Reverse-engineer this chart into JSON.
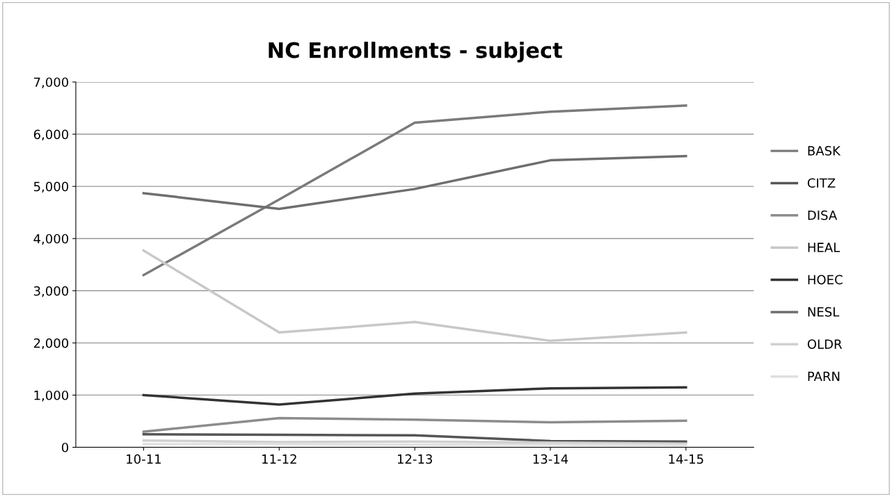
{
  "chart_data": {
    "type": "line",
    "title": "NC Enrollments - subject",
    "categories": [
      "10-11",
      "11-12",
      "12-13",
      "13-14",
      "14-15"
    ],
    "series": [
      {
        "name": "BASK",
        "color": "#7a7a7a",
        "values": [
          3300,
          4750,
          6220,
          6430,
          6550
        ]
      },
      {
        "name": "CITZ",
        "color": "#555555",
        "values": [
          250,
          240,
          230,
          120,
          110
        ]
      },
      {
        "name": "DISA",
        "color": "#8c8c8c",
        "values": [
          300,
          560,
          530,
          480,
          510
        ]
      },
      {
        "name": "HEAL",
        "color": "#c8c8c8",
        "values": [
          3770,
          2200,
          2400,
          2040,
          2200
        ]
      },
      {
        "name": "HOEC",
        "color": "#333333",
        "values": [
          1000,
          820,
          1030,
          1130,
          1150
        ]
      },
      {
        "name": "NESL",
        "color": "#6e6e6e",
        "values": [
          4870,
          4570,
          4950,
          5500,
          5580
        ]
      },
      {
        "name": "OLDR",
        "color": "#d0d0d0",
        "values": [
          130,
          100,
          110,
          90,
          70
        ]
      },
      {
        "name": "PARN",
        "color": "#e0e0e0",
        "values": [
          60,
          60,
          50,
          50,
          40
        ]
      }
    ],
    "ylim": [
      0,
      7000
    ],
    "yticks": [
      {
        "value": 0,
        "label": "0"
      },
      {
        "value": 1000,
        "label": "1,000"
      },
      {
        "value": 2000,
        "label": "2,000"
      },
      {
        "value": 3000,
        "label": "3,000"
      },
      {
        "value": 4000,
        "label": "4,000"
      },
      {
        "value": 5000,
        "label": "5,000"
      },
      {
        "value": 6000,
        "label": "6,000"
      },
      {
        "value": 7000,
        "label": "7,000"
      }
    ],
    "grid": "y",
    "legend": "right",
    "marker": "none",
    "line_style": "solid"
  }
}
